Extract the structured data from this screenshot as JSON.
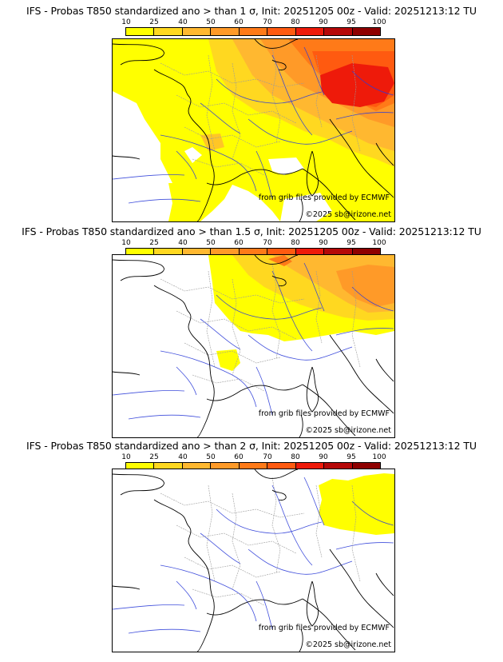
{
  "colors": {
    "scale": [
      "#ffff00",
      "#ffd820",
      "#ffb830",
      "#ff9a28",
      "#ff7a18",
      "#ff5a10",
      "#ee1a0a",
      "#b50808",
      "#8e0000",
      "#5a0000"
    ],
    "coast": "#000000",
    "rivers": "#2b3bd8",
    "borders": "#999999"
  },
  "legend": {
    "ticks": [
      "10",
      "25",
      "40",
      "50",
      "60",
      "70",
      "80",
      "90",
      "95",
      "100"
    ]
  },
  "panels": [
    {
      "title": "IFS - Probas T850  standardized ano > than 1 σ, Init: 20251205 00z - Valid: 20251213:12 TU",
      "credit_source": "from grib files provided by ECMWF",
      "credit_copyright": "©2025 sb@irizone.net"
    },
    {
      "title": "IFS - Probas T850  standardized ano > than 1.5 σ, Init: 20251205 00z - Valid: 20251213:12 TU",
      "credit_source": "from grib files provided by ECMWF",
      "credit_copyright": "©2025 sb@irizone.net"
    },
    {
      "title": "IFS - Probas T850  standardized ano > than 2 σ, Init: 20251205 00z - Valid: 20251213:12 TU",
      "credit_source": "from grib files provided by ECMWF",
      "credit_copyright": "©2025 sb@irizone.net"
    }
  ]
}
